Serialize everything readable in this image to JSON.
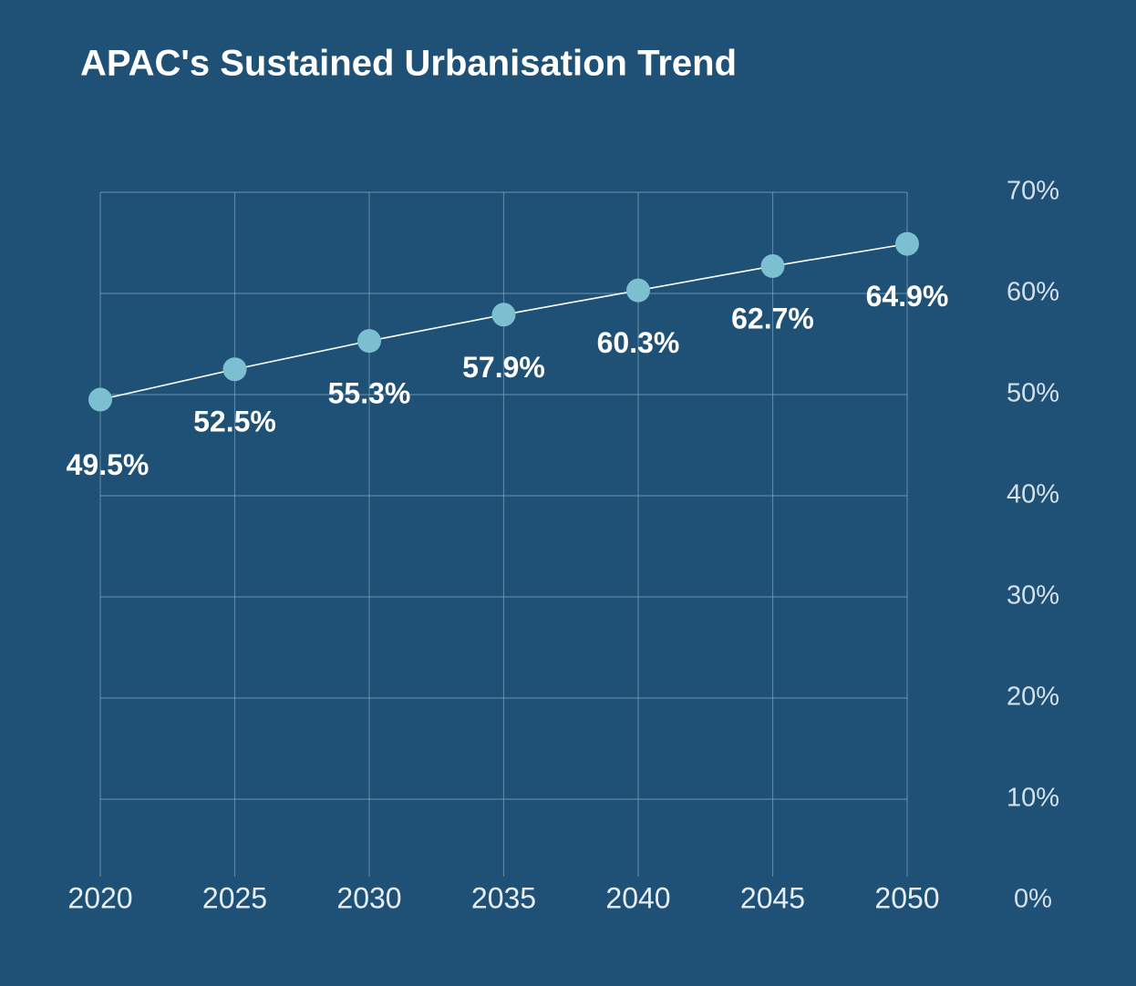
{
  "chart_data": {
    "type": "line",
    "title": "APAC's Sustained Urbanisation Trend",
    "x": [
      2020,
      2025,
      2030,
      2035,
      2040,
      2045,
      2050
    ],
    "values": [
      49.5,
      52.5,
      55.3,
      57.9,
      60.3,
      62.7,
      64.9
    ],
    "value_labels": [
      "49.5%",
      "52.5%",
      "55.3%",
      "57.9%",
      "60.3%",
      "62.7%",
      "64.9%"
    ],
    "color": "#7bbfd0",
    "line_color": "#ffffff",
    "xlim": [
      2020,
      2050
    ],
    "xticks": [
      2020,
      2025,
      2030,
      2035,
      2040,
      2045,
      2050
    ],
    "ylim": [
      0,
      70
    ],
    "yticks": [
      {
        "value": 0,
        "label": "0%"
      },
      {
        "value": 10,
        "label": "10%"
      },
      {
        "value": 20,
        "label": "20%"
      },
      {
        "value": 30,
        "label": "30%"
      },
      {
        "value": 40,
        "label": "40%"
      },
      {
        "value": 50,
        "label": "50%"
      },
      {
        "value": 60,
        "label": "60%"
      },
      {
        "value": 70,
        "label": "70%"
      }
    ],
    "grid": true
  }
}
